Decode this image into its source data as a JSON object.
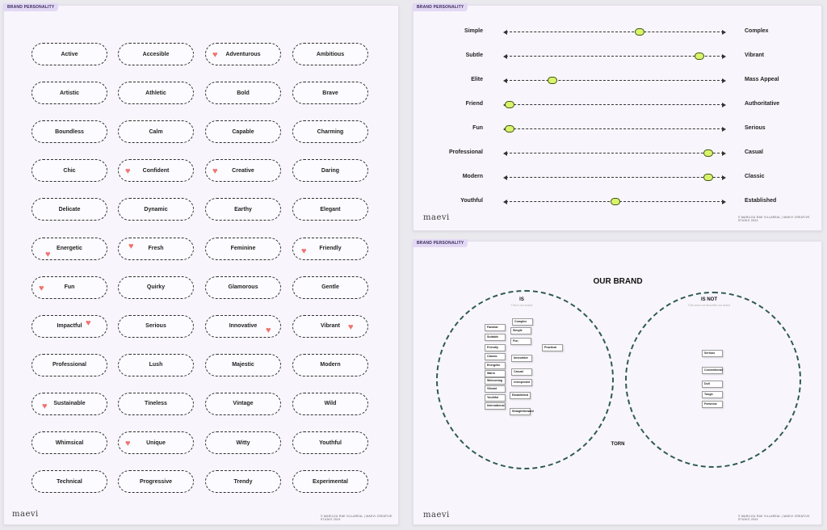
{
  "board_tag": "BRAND PERSONALITY",
  "logo": "maevi",
  "copyright": "© MARILOU RAE VILLAREAL | MAEVI CREATIVE STUDIO 2024",
  "words": [
    {
      "label": "Active",
      "heart": false
    },
    {
      "label": "Accesible",
      "heart": false
    },
    {
      "label": "Adventurous",
      "heart": true
    },
    {
      "label": "Ambitious",
      "heart": false
    },
    {
      "label": "Artistic",
      "heart": false
    },
    {
      "label": "Athletic",
      "heart": false
    },
    {
      "label": "Bold",
      "heart": false
    },
    {
      "label": "Brave",
      "heart": false
    },
    {
      "label": "Boundless",
      "heart": false
    },
    {
      "label": "Calm",
      "heart": false
    },
    {
      "label": "Capable",
      "heart": false
    },
    {
      "label": "Charming",
      "heart": false
    },
    {
      "label": "Chic",
      "heart": false
    },
    {
      "label": "Confident",
      "heart": true
    },
    {
      "label": "Creative",
      "heart": true
    },
    {
      "label": "Daring",
      "heart": false
    },
    {
      "label": "Delicate",
      "heart": false
    },
    {
      "label": "Dynamic",
      "heart": false
    },
    {
      "label": "Earthy",
      "heart": false
    },
    {
      "label": "Elegant",
      "heart": false
    },
    {
      "label": "Energetic",
      "heart": true
    },
    {
      "label": "Fresh",
      "heart": true
    },
    {
      "label": "Feminine",
      "heart": false
    },
    {
      "label": "Friendly",
      "heart": true
    },
    {
      "label": "Fun",
      "heart": true
    },
    {
      "label": "Quirky",
      "heart": false
    },
    {
      "label": "Glamorous",
      "heart": false
    },
    {
      "label": "Gentle",
      "heart": false
    },
    {
      "label": "Impactful",
      "heart": true
    },
    {
      "label": "Serious",
      "heart": false
    },
    {
      "label": "Innovative",
      "heart": true
    },
    {
      "label": "Vibrant",
      "heart": true
    },
    {
      "label": "Professional",
      "heart": false
    },
    {
      "label": "Lush",
      "heart": false
    },
    {
      "label": "Majestic",
      "heart": false
    },
    {
      "label": "Modern",
      "heart": false
    },
    {
      "label": "Sustainable",
      "heart": true
    },
    {
      "label": "Tineless",
      "heart": false
    },
    {
      "label": "Vintage",
      "heart": false
    },
    {
      "label": "Wild",
      "heart": false
    },
    {
      "label": "Whimsical",
      "heart": false
    },
    {
      "label": "Unique",
      "heart": true
    },
    {
      "label": "Witty",
      "heart": false
    },
    {
      "label": "Youthful",
      "heart": false
    },
    {
      "label": "Technical",
      "heart": false
    },
    {
      "label": "Progressive",
      "heart": false
    },
    {
      "label": "Trendy",
      "heart": false
    },
    {
      "label": "Experimental",
      "heart": false
    }
  ],
  "sliders": [
    {
      "left": "Simple",
      "right": "Complex",
      "value": 0.615
    },
    {
      "left": "Subtle",
      "right": "Vibrant",
      "value": 0.89
    },
    {
      "left": "Elite",
      "right": "Mass Appeal",
      "value": 0.215
    },
    {
      "left": "Friend",
      "right": "Authoritative",
      "value": 0.02
    },
    {
      "left": "Fun",
      "right": "Serious",
      "value": 0.02
    },
    {
      "left": "Professional",
      "right": "Casual",
      "value": 0.93
    },
    {
      "left": "Modern",
      "right": "Classic",
      "value": 0.93
    },
    {
      "left": "Youthful",
      "right": "Established",
      "value": 0.505
    }
  ],
  "venn": {
    "title": "OUR BRAND",
    "is_title": "IS",
    "is_sub": "This is our brand",
    "isnot_title": "IS NOT",
    "isnot_sub": "This does not describe our brand",
    "torn": "TORN",
    "is_notes": [
      "Familiar",
      "Suitable",
      "Friendly",
      "Classic",
      "Energetic",
      "Warm",
      "Welcoming",
      "Vibrant",
      "Youthful",
      "International",
      "Complex",
      "Simple",
      "Fun",
      "Innovative",
      "Casual",
      "Unexpected",
      "Established",
      "Straightforward",
      "Practical"
    ],
    "isnot_notes": [
      "Serious",
      "Conventional",
      "Dull",
      "Tough",
      "Feminine"
    ]
  },
  "colors": {
    "heart": "#f0736e",
    "knob": "#d9f36a",
    "circle": "#2f5a55",
    "tag_bg": "#e3d8f5"
  }
}
